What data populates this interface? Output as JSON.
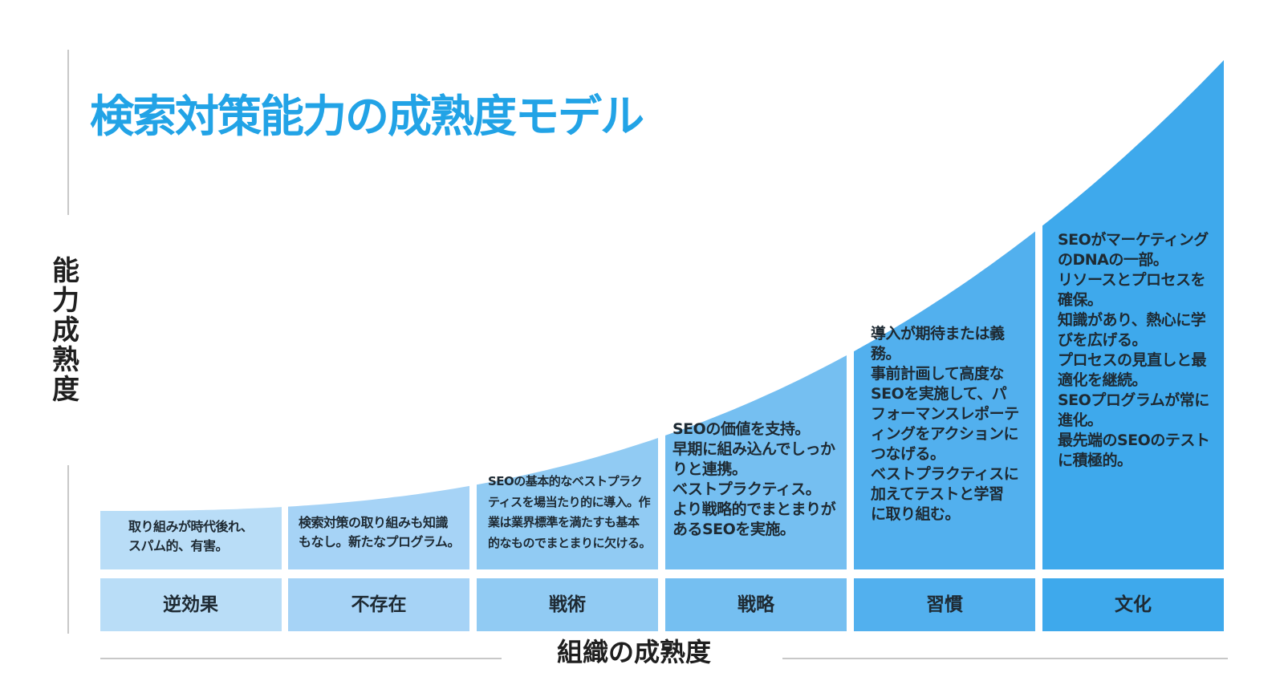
{
  "title": "検索対策能力の成熟度モデル",
  "y_axis_label": "能力成熟度",
  "x_axis_label": "組織の成熟度",
  "stages": [
    {
      "name": "逆効果",
      "description": "取り組みが時代後れ、\nスパム的、有害。",
      "color": "#b9ddf7"
    },
    {
      "name": "不存在",
      "description": "検索対策の取り組みも知識\nもなし。新たなプログラム。",
      "color": "#a6d3f6"
    },
    {
      "name": "戦術",
      "description": "SEOの基本的なベストプラク\nティスを場当たり的に導入。作\n業は業界標準を満たすも基本\n的なものでまとまりに欠ける。",
      "color": "#91cbf3"
    },
    {
      "name": "戦略",
      "description": "SEOの価値を支持。\n早期に組み込んでしっか\nりと連携。\nベストプラクティス。\nより戦略的でまとまりが\nあるSEOを実施。",
      "color": "#75bff1"
    },
    {
      "name": "習慣",
      "description": "導入が期待または義\n務。\n事前計画して高度な\nSEOを実施して、パ\nフォーマンスレポーテ\nィングをアクションに\nつなげる。\nベストプラクティスに\n加えてテストと学習\nに取り組む。",
      "color": "#52b0ee"
    },
    {
      "name": "文化",
      "description": "SEOがマーケティング\nのDNAの一部。\nリソースとプロセスを\n確保。\n知識があり、熱心に学\nびを広げる。\nプロセスの見直しと最\n適化を継続。\nSEOプログラムが常に\n進化。\n最先端のSEOのテスト\nに積極的。",
      "color": "#3ea9ec"
    }
  ],
  "colors": {
    "title": "#22a3e6",
    "axis_line": "#c8c8c8",
    "text": "#1e2a33"
  }
}
